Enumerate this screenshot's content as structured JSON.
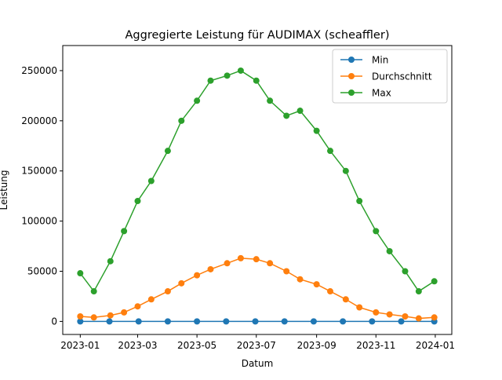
{
  "chart_data": {
    "type": "line",
    "title": "Aggregierte Leistung für AUDIMAX (scheaffler)",
    "xlabel": "Datum",
    "ylabel": "Leistung",
    "x_range": [
      "2022-12-14",
      "2024-01-18"
    ],
    "ylim": [
      -13000,
      275000
    ],
    "x_ticks": [
      "2023-01",
      "2023-03",
      "2023-05",
      "2023-07",
      "2023-09",
      "2023-11",
      "2024-01"
    ],
    "y_ticks": [
      0,
      50000,
      100000,
      150000,
      200000,
      250000
    ],
    "y_tick_labels": [
      "0",
      "50000",
      "100000",
      "150000",
      "200000",
      "250000"
    ],
    "grid": false,
    "legend_position": "upper right",
    "series": [
      {
        "name": "Min",
        "color": "#1f77b4",
        "x": [
          "2023-01-01",
          "2023-01-31",
          "2023-03-02",
          "2023-04-01",
          "2023-05-01",
          "2023-05-31",
          "2023-06-30",
          "2023-07-30",
          "2023-08-29",
          "2023-09-28",
          "2023-10-28",
          "2023-11-27",
          "2023-12-31"
        ],
        "values": [
          0,
          0,
          0,
          0,
          0,
          0,
          0,
          0,
          0,
          0,
          0,
          0,
          0
        ]
      },
      {
        "name": "Durchschnitt",
        "color": "#ff7f0e",
        "x": [
          "2023-01-01",
          "2023-01-15",
          "2023-02-01",
          "2023-02-15",
          "2023-03-01",
          "2023-03-15",
          "2023-04-01",
          "2023-04-15",
          "2023-05-01",
          "2023-05-15",
          "2023-06-01",
          "2023-06-15",
          "2023-07-01",
          "2023-07-15",
          "2023-08-01",
          "2023-08-15",
          "2023-09-01",
          "2023-09-15",
          "2023-10-01",
          "2023-10-15",
          "2023-11-01",
          "2023-11-15",
          "2023-12-01",
          "2023-12-15",
          "2023-12-31"
        ],
        "values": [
          5000,
          4000,
          6000,
          9000,
          15000,
          22000,
          30000,
          38000,
          46000,
          52000,
          58000,
          63000,
          62000,
          58000,
          50000,
          42000,
          37000,
          30000,
          22000,
          14000,
          9000,
          7000,
          5000,
          3000,
          4000
        ]
      },
      {
        "name": "Max",
        "color": "#2ca02c",
        "x": [
          "2023-01-01",
          "2023-01-15",
          "2023-02-01",
          "2023-02-15",
          "2023-03-01",
          "2023-03-15",
          "2023-04-01",
          "2023-04-15",
          "2023-05-01",
          "2023-05-15",
          "2023-06-01",
          "2023-06-15",
          "2023-07-01",
          "2023-07-15",
          "2023-08-01",
          "2023-08-15",
          "2023-09-01",
          "2023-09-15",
          "2023-10-01",
          "2023-10-15",
          "2023-11-01",
          "2023-11-15",
          "2023-12-01",
          "2023-12-15",
          "2023-12-31"
        ],
        "values": [
          48000,
          30000,
          60000,
          90000,
          120000,
          140000,
          170000,
          200000,
          220000,
          240000,
          245000,
          250000,
          240000,
          220000,
          205000,
          210000,
          190000,
          170000,
          150000,
          120000,
          90000,
          70000,
          50000,
          30000,
          40000
        ]
      }
    ]
  }
}
